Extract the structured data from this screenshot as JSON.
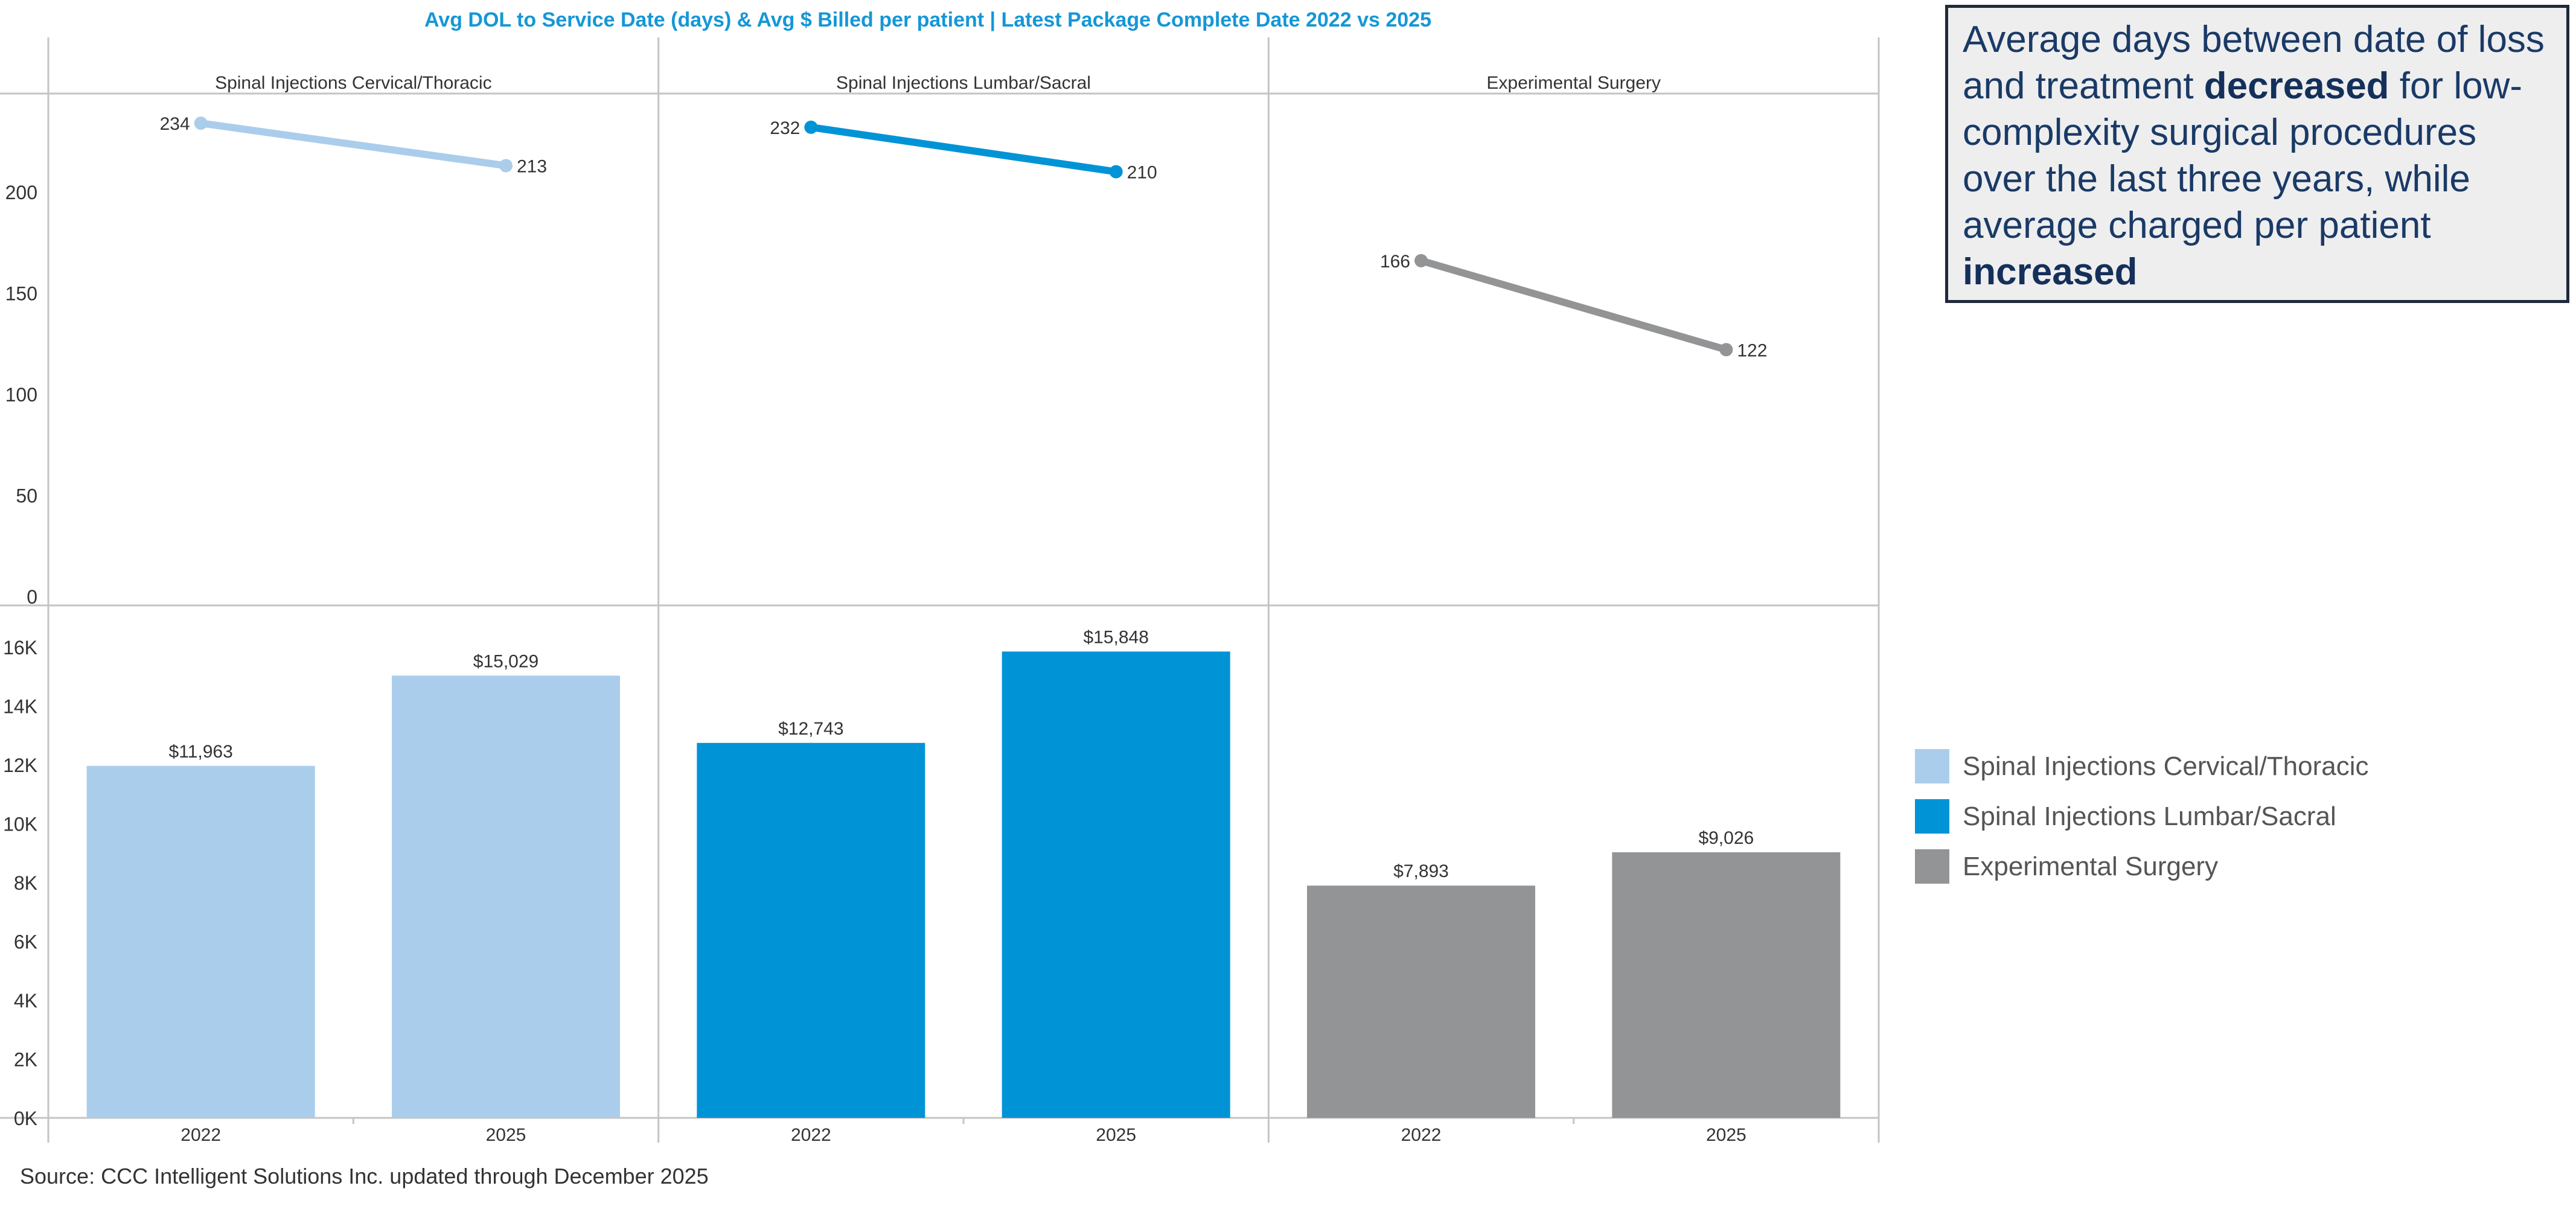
{
  "chart_data": {
    "type": "line+bar",
    "title": "Avg DOL to Service Date (days) & Avg $ Billed per patient | Latest Package Complete Date 2022 vs 2025",
    "panels": [
      {
        "name": "Spinal Injections Cervical/Thoracic",
        "color": "#abcdec",
        "days": [
          234,
          213
        ],
        "billed": [
          11963,
          15029
        ],
        "billed_labels": [
          "$11,963",
          "$15,029"
        ]
      },
      {
        "name": "Spinal Injections Lumbar/Sacral",
        "color": "#0094d6",
        "days": [
          232,
          210
        ],
        "billed": [
          12743,
          15848
        ],
        "billed_labels": [
          "$12,743",
          "$15,848"
        ]
      },
      {
        "name": "Experimental Surgery",
        "color": "#939496",
        "days": [
          166,
          122
        ],
        "billed": [
          7893,
          9026
        ],
        "billed_labels": [
          "$7,893",
          "$9,026"
        ]
      }
    ],
    "x_categories": [
      "2022",
      "2025"
    ],
    "days_axis": {
      "ticks": [
        0,
        50,
        100,
        150,
        200
      ],
      "ylim": [
        0,
        245
      ]
    },
    "billed_axis": {
      "ticks": [
        0,
        2000,
        4000,
        6000,
        8000,
        10000,
        12000,
        14000,
        16000
      ],
      "tick_labels": [
        "0K",
        "2K",
        "4K",
        "6K",
        "8K",
        "10K",
        "12K",
        "14K",
        "16K"
      ],
      "ylim": [
        0,
        17000
      ]
    }
  },
  "callout": {
    "part1": "Average days between date of loss and treatment ",
    "bold1": "decreased",
    "part2": " for low-complexity surgical procedures over the last three years, while average charged per patient ",
    "bold2": "increased"
  },
  "legend": [
    {
      "label": "Spinal Injections Cervical/Thoracic",
      "color": "#abcdec"
    },
    {
      "label": "Spinal Injections Lumbar/Sacral",
      "color": "#0094d6"
    },
    {
      "label": "Experimental Surgery",
      "color": "#939496"
    }
  ],
  "source": "Source: CCC Intelligent Solutions Inc. updated through December 2025",
  "colors": {
    "title": "#1597d6",
    "grid": "#c4c4c4",
    "text": "#333333"
  }
}
